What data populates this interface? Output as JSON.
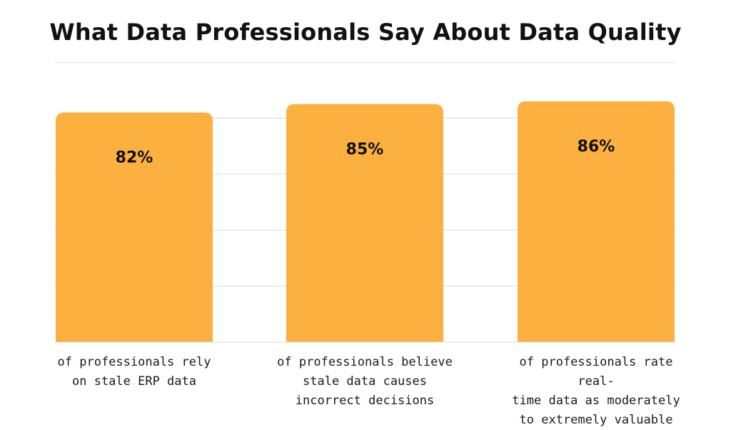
{
  "chart_data": {
    "type": "bar",
    "title": "What Data Professionals Say About Data Quality",
    "categories": [
      "of professionals rely on stale ERP data",
      "of professionals believe stale data causes incorrect decisions",
      "of professionals rate real-time data as moderately to extremely valuable"
    ],
    "values": [
      82,
      85,
      86
    ],
    "value_labels": [
      "82%",
      "85%",
      "86%"
    ],
    "caption_lines": [
      [
        "of professionals rely",
        "on stale ERP data"
      ],
      [
        "of professionals believe",
        "stale data causes",
        "incorrect decisions"
      ],
      [
        "of professionals rate real-",
        "time data as moderately",
        "to extremely valuable"
      ]
    ],
    "ylim": [
      0,
      100
    ],
    "grid": true,
    "legend": "none",
    "bar_color": "#FBB040",
    "grid_color": "#dcdcdc",
    "text_color": "#111111"
  }
}
